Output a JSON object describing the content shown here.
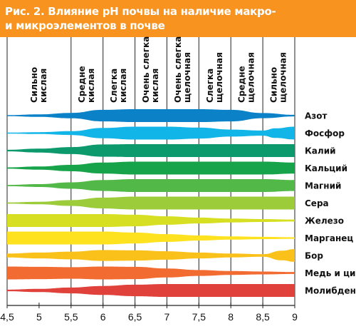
{
  "figure": {
    "title_line1": "Рис. 2. Влияние pH почвы на наличие макро-",
    "title_line2": "и  микроэлементов в почве",
    "header_color": "#f7931e"
  },
  "chart_data": {
    "type": "band-chart",
    "x_axis": {
      "label": "",
      "range": [
        4.5,
        9
      ],
      "ticks": [
        4.5,
        5,
        5.5,
        6,
        6.5,
        7,
        7.5,
        8,
        8.5,
        9
      ],
      "tick_labels": [
        "4,5",
        "5",
        "5,5",
        "6",
        "6,5",
        "7",
        "7,5",
        "8",
        "8,5",
        "9"
      ]
    },
    "zones": [
      {
        "line1": "Сильно",
        "line2": "кислая"
      },
      {
        "line1": "Средне",
        "line2": "кислая"
      },
      {
        "line1": "Слегка",
        "line2": "кислая"
      },
      {
        "line1": "Очень слегка",
        "line2": "кислая"
      },
      {
        "line1": "Очень слегка",
        "line2": "щелочная"
      },
      {
        "line1": "Слегка",
        "line2": "щелочная"
      },
      {
        "line1": "Средне",
        "line2": "щелочная"
      },
      {
        "line1": "Сильно",
        "line2": "щелочная"
      }
    ],
    "zone_boundaries": [
      4.5,
      5.5,
      6.0,
      6.5,
      7.0,
      7.5,
      8.0,
      8.5,
      9.0
    ],
    "availability_scale": "relative band thickness 0-1",
    "series": [
      {
        "name": "Азот",
        "color": "#0b82c8",
        "points": [
          [
            4.5,
            0.08
          ],
          [
            5.0,
            0.2
          ],
          [
            5.5,
            0.42
          ],
          [
            6.0,
            0.9
          ],
          [
            6.5,
            1.0
          ],
          [
            7.0,
            1.0
          ],
          [
            7.5,
            1.0
          ],
          [
            8.0,
            0.9
          ],
          [
            8.5,
            0.4
          ],
          [
            9.0,
            0.12
          ]
        ]
      },
      {
        "name": "Фосфор",
        "color": "#12b5e8",
        "points": [
          [
            4.5,
            0.08
          ],
          [
            5.0,
            0.15
          ],
          [
            5.5,
            0.3
          ],
          [
            6.0,
            0.8
          ],
          [
            6.5,
            1.0
          ],
          [
            7.0,
            1.0
          ],
          [
            7.5,
            0.85
          ],
          [
            8.0,
            0.55
          ],
          [
            8.5,
            0.4
          ],
          [
            8.7,
            0.75
          ],
          [
            9.0,
            1.0
          ]
        ]
      },
      {
        "name": "Калий",
        "color": "#0c9a6c",
        "points": [
          [
            4.5,
            0.12
          ],
          [
            5.0,
            0.3
          ],
          [
            5.5,
            0.55
          ],
          [
            6.0,
            0.95
          ],
          [
            6.5,
            1.0
          ],
          [
            7.0,
            1.0
          ],
          [
            7.5,
            1.0
          ],
          [
            8.0,
            1.0
          ],
          [
            8.5,
            1.0
          ],
          [
            9.0,
            1.0
          ]
        ]
      },
      {
        "name": "Кальций",
        "color": "#17a34a",
        "points": [
          [
            4.5,
            0.1
          ],
          [
            5.0,
            0.25
          ],
          [
            5.5,
            0.5
          ],
          [
            6.0,
            0.85
          ],
          [
            6.5,
            1.0
          ],
          [
            7.0,
            1.0
          ],
          [
            7.5,
            1.0
          ],
          [
            8.0,
            1.0
          ],
          [
            8.5,
            1.0
          ],
          [
            9.0,
            0.85
          ]
        ]
      },
      {
        "name": "Магний",
        "color": "#52b848",
        "points": [
          [
            4.5,
            0.1
          ],
          [
            5.0,
            0.22
          ],
          [
            5.5,
            0.5
          ],
          [
            6.0,
            0.85
          ],
          [
            6.5,
            1.0
          ],
          [
            7.0,
            1.0
          ],
          [
            7.5,
            1.0
          ],
          [
            8.0,
            1.0
          ],
          [
            8.5,
            1.0
          ],
          [
            9.0,
            0.85
          ]
        ]
      },
      {
        "name": "Сера",
        "color": "#9ccc3a",
        "points": [
          [
            4.5,
            0.1
          ],
          [
            5.0,
            0.2
          ],
          [
            5.5,
            0.45
          ],
          [
            6.0,
            0.85
          ],
          [
            6.5,
            1.0
          ],
          [
            7.0,
            1.0
          ],
          [
            7.5,
            1.0
          ],
          [
            8.0,
            1.0
          ],
          [
            8.5,
            1.0
          ],
          [
            9.0,
            1.0
          ]
        ]
      },
      {
        "name": "Железо",
        "color": "#d7df23",
        "points": [
          [
            4.5,
            1.0
          ],
          [
            5.0,
            1.0
          ],
          [
            5.5,
            1.0
          ],
          [
            6.0,
            1.0
          ],
          [
            6.5,
            0.9
          ],
          [
            7.0,
            0.65
          ],
          [
            7.5,
            0.45
          ],
          [
            8.0,
            0.3
          ],
          [
            8.5,
            0.22
          ],
          [
            9.0,
            0.15
          ]
        ]
      },
      {
        "name": "Марганец",
        "color": "#ffe21f",
        "points": [
          [
            4.5,
            1.0
          ],
          [
            5.0,
            1.0
          ],
          [
            5.5,
            1.0
          ],
          [
            6.0,
            1.0
          ],
          [
            6.5,
            0.85
          ],
          [
            7.0,
            0.6
          ],
          [
            7.5,
            0.4
          ],
          [
            8.0,
            0.25
          ],
          [
            8.5,
            0.18
          ],
          [
            9.0,
            0.12
          ]
        ]
      },
      {
        "name": "Бор",
        "color": "#fbc11b",
        "points": [
          [
            4.5,
            0.3
          ],
          [
            5.0,
            0.45
          ],
          [
            5.5,
            0.6
          ],
          [
            6.0,
            0.85
          ],
          [
            6.5,
            0.8
          ],
          [
            7.0,
            0.65
          ],
          [
            7.5,
            0.45
          ],
          [
            8.0,
            0.3
          ],
          [
            8.5,
            0.2
          ],
          [
            8.8,
            0.75
          ],
          [
            9.0,
            1.0
          ]
        ]
      },
      {
        "name": "Медь и цинк",
        "color": "#f26b31",
        "points": [
          [
            4.5,
            1.0
          ],
          [
            5.0,
            0.95
          ],
          [
            5.5,
            0.9
          ],
          [
            6.0,
            1.0
          ],
          [
            6.5,
            0.95
          ],
          [
            7.0,
            0.7
          ],
          [
            7.5,
            0.45
          ],
          [
            8.0,
            0.3
          ],
          [
            8.5,
            0.22
          ],
          [
            9.0,
            0.15
          ]
        ]
      },
      {
        "name": "Молибден",
        "color": "#e0413a",
        "points": [
          [
            4.5,
            0.12
          ],
          [
            5.0,
            0.25
          ],
          [
            5.5,
            0.45
          ],
          [
            6.0,
            0.7
          ],
          [
            6.5,
            0.9
          ],
          [
            7.0,
            1.0
          ],
          [
            7.5,
            1.0
          ],
          [
            8.0,
            1.0
          ],
          [
            8.5,
            1.0
          ],
          [
            9.0,
            1.0
          ]
        ]
      }
    ]
  }
}
